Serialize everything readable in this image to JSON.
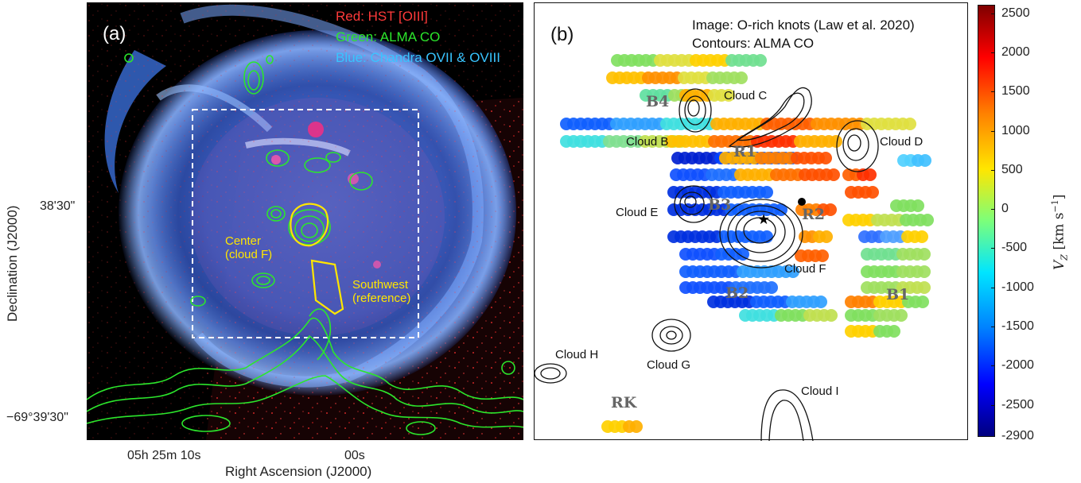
{
  "panel_a": {
    "panel_label": "(a)",
    "legend": {
      "red": "Red: HST [OIII]",
      "green": "Green: ALMA CO",
      "blue": "Blue: Chandra OVII & OVIII"
    },
    "region_center": "Center\n(cloud F)",
    "region_sw": "Southwest\n(reference)",
    "y_axis_label": "Declination (J2000)",
    "x_axis_label": "Right Ascension (J2000)",
    "y_ticks": [
      "38'30\"",
      "−69°39'30\""
    ],
    "x_ticks": [
      "05h 25m 10s",
      "00s"
    ],
    "colors": {
      "red": "#ff3a3a",
      "green": "#2ce62c",
      "blue": "#39c4ff",
      "region": "#ffe600"
    }
  },
  "panel_b": {
    "panel_label": "(b)",
    "caption_line1": "Image: O-rich knots (Law et al. 2020)",
    "caption_line2": "Contours: ALMA CO",
    "clouds": [
      "Cloud C",
      "Cloud B",
      "Cloud D",
      "Cloud E",
      "Cloud F",
      "Cloud H",
      "Cloud G",
      "Cloud I"
    ],
    "regions": [
      "B4",
      "R1",
      "B3",
      "R2",
      "B2",
      "B1",
      "RK"
    ]
  },
  "colorbar": {
    "label": "V_Z [km s^-1]",
    "ticks": [
      "2500",
      "2000",
      "1500",
      "1000",
      "500",
      "0",
      "-500",
      "-1000",
      "-1500",
      "-2000",
      "-2500",
      "-2900"
    ],
    "range": [
      -2900,
      2600
    ],
    "colors": [
      "#00007f",
      "#0000ff",
      "#0080ff",
      "#00e5ff",
      "#7cff7a",
      "#ffe600",
      "#ff8000",
      "#ff0000",
      "#7f0000"
    ]
  }
}
